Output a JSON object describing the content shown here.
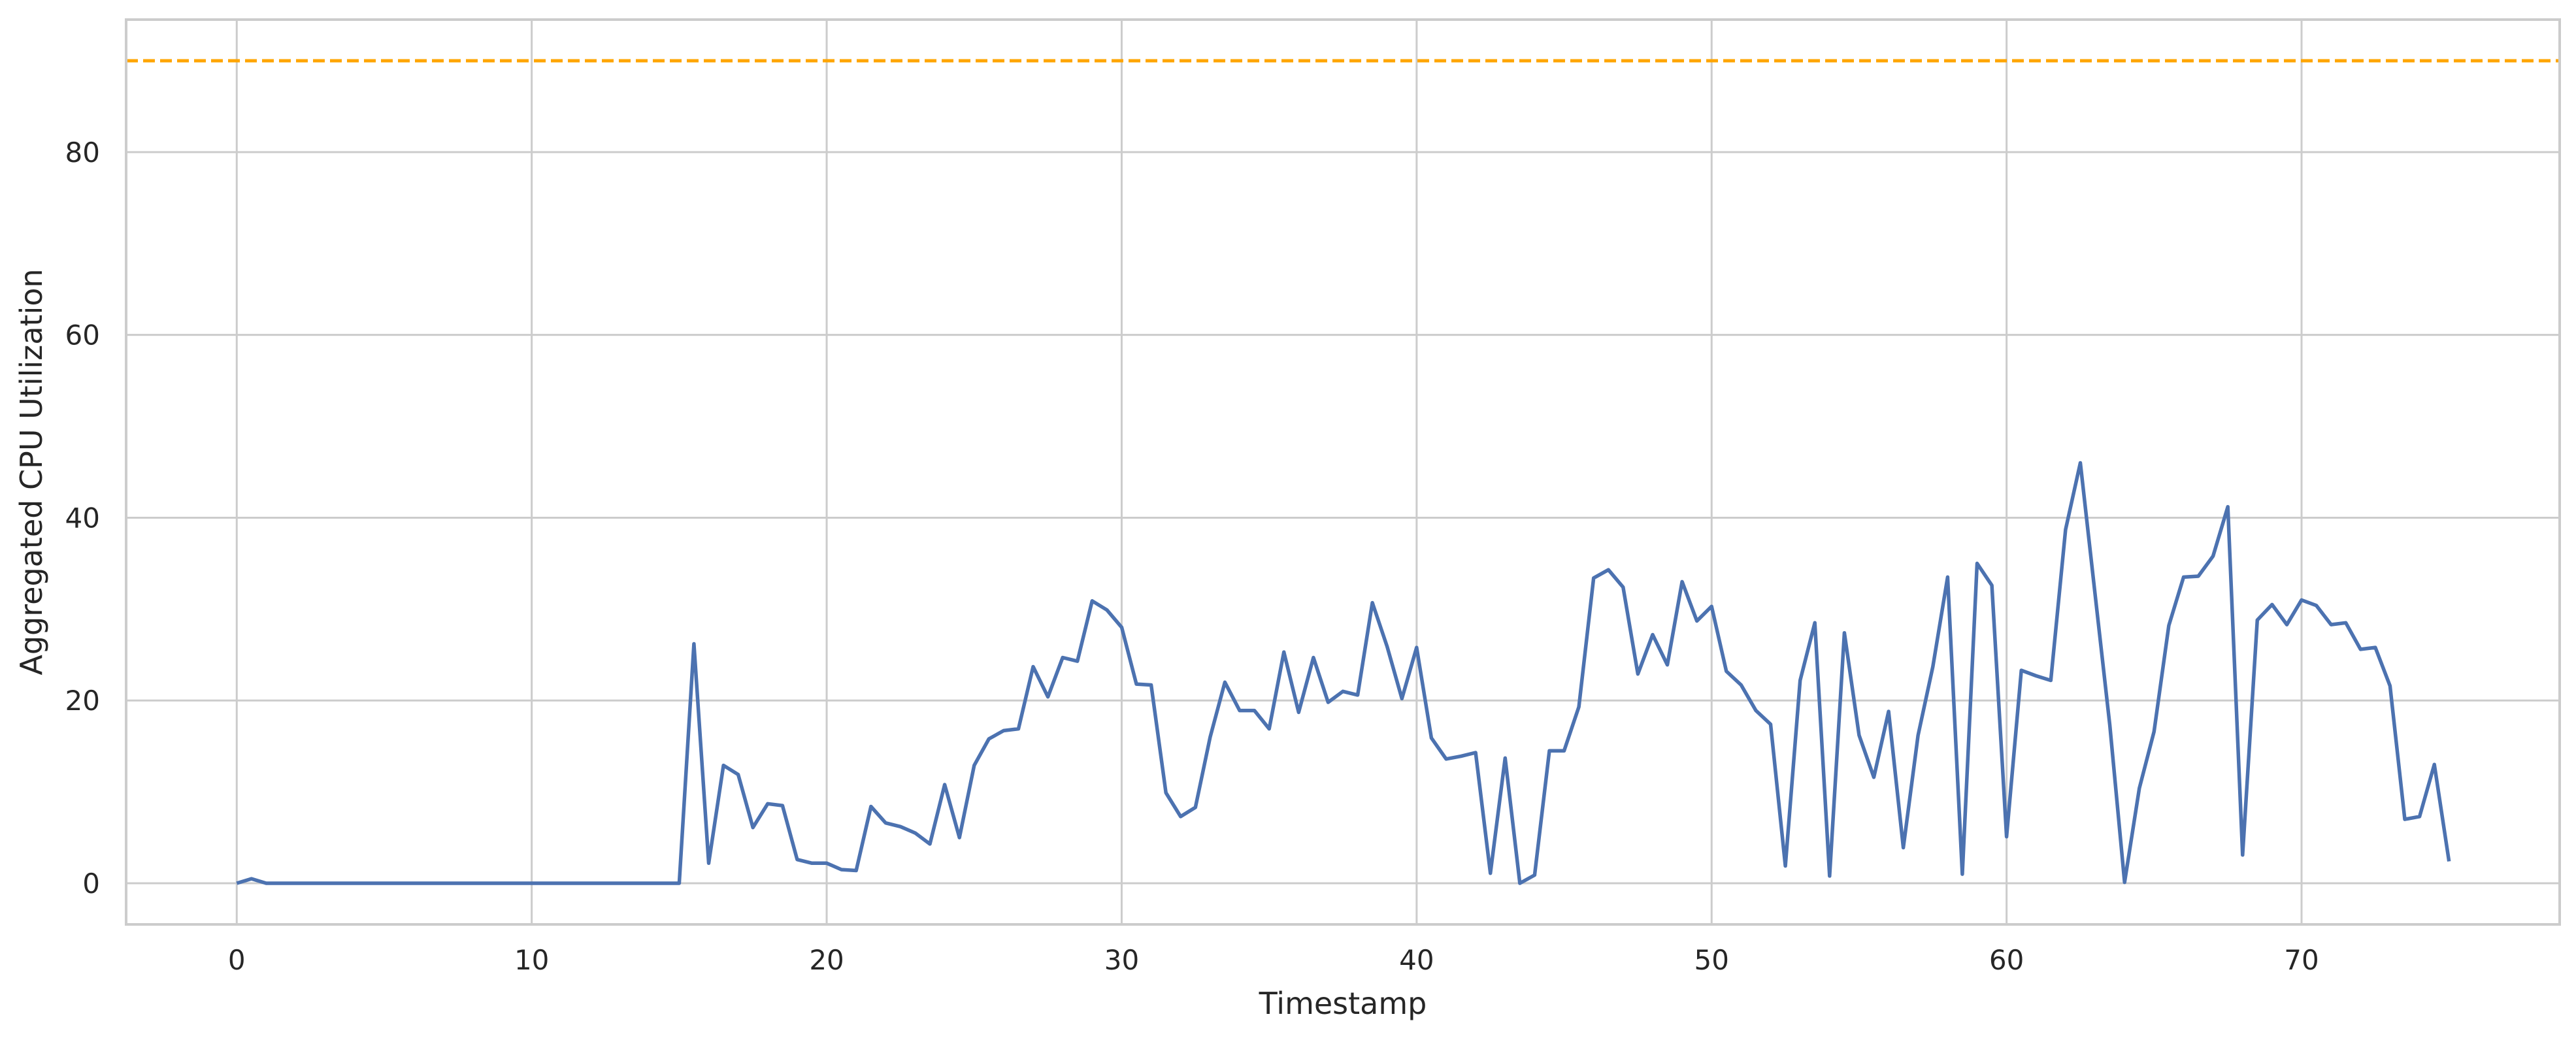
{
  "chart_data": {
    "type": "line",
    "xlabel": "Timestamp",
    "ylabel": "Aggregated CPU Utilization",
    "xlim": [
      -3.75,
      78.75
    ],
    "ylim": [
      -4.5,
      94.5
    ],
    "x_ticks": [
      0,
      10,
      20,
      30,
      40,
      50,
      60,
      70
    ],
    "y_ticks": [
      0,
      20,
      40,
      60,
      80
    ],
    "grid": true,
    "legend": "none",
    "series": [
      {
        "color": "#4c72b0",
        "x": [
          0,
          0.5,
          1,
          1.5,
          2,
          2.5,
          3,
          3.5,
          4,
          4.5,
          5,
          5.5,
          6,
          6.5,
          7,
          7.5,
          8,
          8.5,
          9,
          9.5,
          10,
          10.5,
          11,
          11.5,
          12,
          12.5,
          13,
          13.5,
          14,
          14.5,
          15,
          15.5,
          16,
          16.5,
          17,
          17.5,
          18,
          18.5,
          19,
          19.5,
          20,
          20.5,
          21,
          21.5,
          22,
          22.5,
          23,
          23.5,
          24,
          24.5,
          25,
          25.5,
          26,
          26.5,
          27,
          27.5,
          28,
          28.5,
          29,
          29.5,
          30,
          30.5,
          31,
          31.5,
          32,
          32.5,
          33,
          33.5,
          34,
          34.5,
          35,
          35.5,
          36,
          36.5,
          37,
          37.5,
          38,
          38.5,
          39,
          39.5,
          40,
          40.5,
          41,
          41.5,
          42,
          42.5,
          43,
          43.5,
          44,
          44.5,
          45,
          45.5,
          46,
          46.5,
          47,
          47.5,
          48,
          48.5,
          49,
          49.5,
          50,
          50.5,
          51,
          51.5,
          52,
          52.5,
          53,
          53.5,
          54,
          54.5,
          55,
          55.5,
          56,
          56.5,
          57,
          57.5,
          58,
          58.5,
          59,
          59.5,
          60,
          60.5,
          61,
          61.5,
          62,
          62.5,
          63,
          63.5,
          64,
          64.5,
          65,
          65.5,
          66,
          66.5,
          67,
          67.5,
          68,
          68.5,
          69,
          69.5,
          70,
          70.5,
          71,
          71.5,
          72,
          72.5,
          73,
          73.5,
          74,
          74.5,
          75
        ],
        "y": [
          0,
          0.5,
          0,
          0,
          0,
          0,
          0,
          0,
          0,
          0,
          0,
          0,
          0,
          0,
          0,
          0,
          0,
          0,
          0,
          0,
          0,
          0,
          0,
          0,
          0,
          0,
          0,
          0,
          0,
          0,
          0,
          26.2,
          2.2,
          12.9,
          11.9,
          6.1,
          8.7,
          8.5,
          2.6,
          2.2,
          2.2,
          1.5,
          1.4,
          8.4,
          6.6,
          6.2,
          5.5,
          4.3,
          10.8,
          5,
          12.9,
          15.8,
          16.7,
          16.9,
          23.7,
          20.4,
          24.7,
          24.3,
          30.9,
          29.9,
          28,
          21.8,
          21.7,
          9.9,
          7.3,
          8.3,
          16,
          22,
          18.9,
          18.9,
          16.9,
          25.3,
          18.7,
          24.7,
          19.8,
          21,
          20.6,
          30.7,
          25.9,
          20.2,
          25.8,
          15.9,
          13.6,
          13.9,
          14.3,
          1.1,
          13.7,
          0,
          0.9,
          14.5,
          14.5,
          19.3,
          33.4,
          34.3,
          32.4,
          22.9,
          27.2,
          23.9,
          33,
          28.7,
          30.3,
          23.2,
          21.7,
          18.9,
          17.4,
          1.9,
          22.2,
          28.5,
          0.8,
          27.4,
          16.2,
          11.6,
          18.8,
          3.9,
          16.2,
          23.7,
          33.5,
          1,
          35,
          32.6,
          5.1,
          23.3,
          22.7,
          22.2,
          38.7,
          46,
          31.6,
          17.3,
          0.1,
          10.4,
          16.6,
          28.2,
          33.5,
          33.6,
          35.8,
          41.2,
          3.1,
          28.8,
          30.5,
          28.3,
          31,
          30.4,
          28.3,
          28.5,
          25.6,
          25.8,
          21.6,
          7,
          7.3,
          13,
          2.4
        ]
      }
    ],
    "threshold": {
      "y": 90,
      "color": "#ffa500",
      "style": "dashed"
    }
  }
}
